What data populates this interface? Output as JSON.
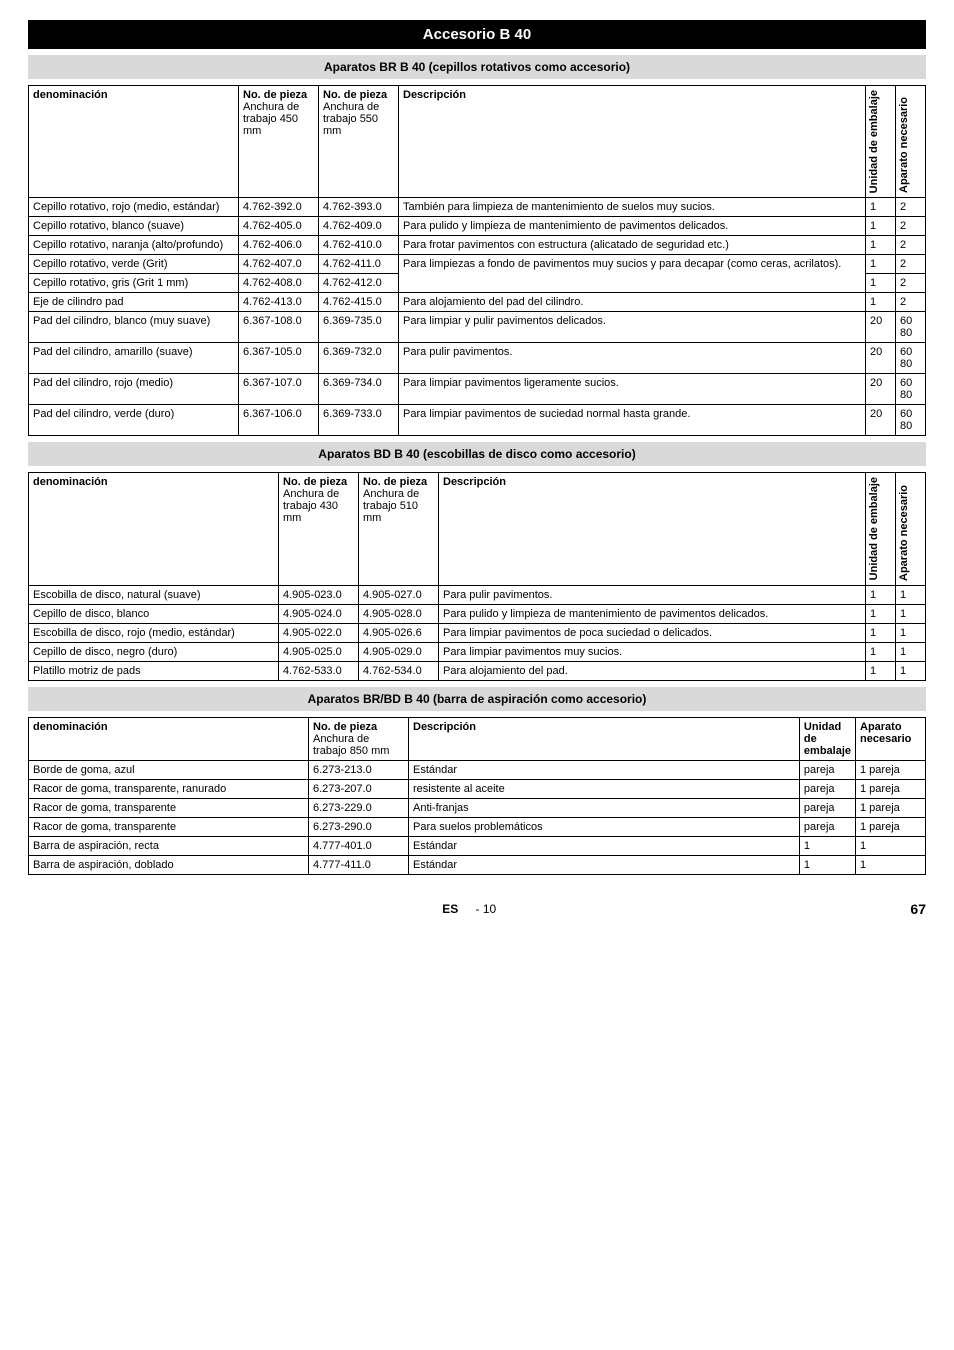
{
  "title": "Accesorio B 40",
  "sections": {
    "s1": {
      "header": "Aparatos BR B 40 (cepillos rotativos como accesorio)",
      "cols": {
        "denom": "denominación",
        "p450_top": "No. de pieza",
        "p450_sub": "Anchura de trabajo 450 mm",
        "p550_top": "No. de pieza",
        "p550_sub": "Anchura de trabajo 550 mm",
        "desc": "Descripción",
        "unidad": "Unidad de embalaje",
        "aparato": "Aparato necesario"
      },
      "rows": [
        {
          "d": "Cepillo rotativo, rojo (medio, estándar)",
          "p1": "4.762-392.0",
          "p2": "4.762-393.0",
          "desc": "También para limpieza de mantenimiento de suelos muy sucios.",
          "u": "1",
          "a": "2"
        },
        {
          "d": "Cepillo rotativo, blanco (suave)",
          "p1": "4.762-405.0",
          "p2": "4.762-409.0",
          "desc": "Para pulido y limpieza de mantenimiento de pavimentos delicados.",
          "u": "1",
          "a": "2"
        },
        {
          "d": "Cepillo rotativo, naranja (alto/profundo)",
          "p1": "4.762-406.0",
          "p2": "4.762-410.0",
          "desc": "Para frotar pavimentos con estructura (alicatado de seguridad etc.)",
          "u": "1",
          "a": "2"
        },
        {
          "d": "Cepillo rotativo, verde (Grit)",
          "p1": "4.762-407.0",
          "p2": "4.762-411.0",
          "desc": "Para limpiezas a fondo de pavimentos muy sucios y para decapar (como ceras, acrilatos).",
          "u": "1",
          "a": "2",
          "rowspan_desc": 2
        },
        {
          "d": "Cepillo rotativo, gris  (Grit 1 mm)",
          "p1": "4.762-408.0",
          "p2": "4.762-412.0",
          "u": "1",
          "a": "2",
          "skip_desc": true
        },
        {
          "d": "Eje de cilindro pad",
          "p1": "4.762-413.0",
          "p2": "4.762-415.0",
          "desc": "Para alojamiento del pad del cilindro.",
          "u": "1",
          "a": "2"
        },
        {
          "d": "Pad del cilindro, blanco (muy suave)",
          "p1": "6.367-108.0",
          "p2": "6.369-735.0",
          "desc": "Para limpiar y pulir pavimentos delicados.",
          "u": "20",
          "a": "60\n80"
        },
        {
          "d": "Pad del cilindro, amarillo (suave)",
          "p1": "6.367-105.0",
          "p2": "6.369-732.0",
          "desc": "Para pulir pavimentos.",
          "u": "20",
          "a": "60\n80"
        },
        {
          "d": "Pad del cilindro, rojo (medio)",
          "p1": "6.367-107.0",
          "p2": "6.369-734.0",
          "desc": "Para limpiar pavimentos ligeramente sucios.",
          "u": "20",
          "a": "60\n80"
        },
        {
          "d": "Pad del cilindro, verde (duro)",
          "p1": "6.367-106.0",
          "p2": "6.369-733.0",
          "desc": "Para limpiar pavimentos de suciedad normal hasta grande.",
          "u": "20",
          "a": "60\n80"
        }
      ]
    },
    "s2": {
      "header": "Aparatos BD B 40 (escobillas de disco como accesorio)",
      "cols": {
        "denom": "denominación",
        "p430_top": "No. de pieza",
        "p430_sub": "Anchura de trabajo 430 mm",
        "p510_top": "No. de pieza",
        "p510_sub": "Anchura de trabajo 510 mm",
        "desc": "Descripción",
        "unidad": "Unidad de embalaje",
        "aparato": "Aparato necesario"
      },
      "rows": [
        {
          "d": "Escobilla de disco, natural (suave)",
          "p1": "4.905-023.0",
          "p2": "4.905-027.0",
          "desc": "Para pulir pavimentos.",
          "u": "1",
          "a": "1"
        },
        {
          "d": "Cepillo de disco, blanco",
          "p1": "4.905-024.0",
          "p2": "4.905-028.0",
          "desc": "Para pulido y limpieza de mantenimiento de pavimentos delicados.",
          "u": "1",
          "a": "1"
        },
        {
          "d": "Escobilla de disco, rojo (medio, estándar)",
          "p1": "4.905-022.0",
          "p2": "4.905-026.6",
          "desc": "Para limpiar pavimentos de poca suciedad o delicados.",
          "u": "1",
          "a": "1"
        },
        {
          "d": "Cepillo de disco, negro (duro)",
          "p1": "4.905-025.0",
          "p2": "4.905-029.0",
          "desc": "Para limpiar pavimentos muy sucios.",
          "u": "1",
          "a": "1"
        },
        {
          "d": "Platillo motriz de pads",
          "p1": "4.762-533.0",
          "p2": "4.762-534.0",
          "desc": "Para alojamiento del pad.",
          "u": "1",
          "a": "1"
        }
      ]
    },
    "s3": {
      "header": "Aparatos BR/BD B 40 (barra de aspiración como accesorio)",
      "cols": {
        "denom": "denominación",
        "p850_top": "No. de pieza",
        "p850_sub": "Anchura de trabajo 850 mm",
        "desc": "Descripción",
        "unidad": "Unidad de embalaje",
        "aparato": "Aparato necesario"
      },
      "rows": [
        {
          "d": "Borde de goma, azul",
          "p1": "6.273-213.0",
          "desc": "Estándar",
          "u": "pareja",
          "a": "1 pareja"
        },
        {
          "d": "Racor de goma, transparente, ranurado",
          "p1": "6.273-207.0",
          "desc": "resistente al aceite",
          "u": "pareja",
          "a": "1 pareja"
        },
        {
          "d": "Racor de goma, transparente",
          "p1": "6.273-229.0",
          "desc": "Anti-franjas",
          "u": "pareja",
          "a": "1 pareja"
        },
        {
          "d": "Racor de goma, transparente",
          "p1": "6.273-290.0",
          "desc": "Para suelos problemáticos",
          "u": "pareja",
          "a": "1 pareja"
        },
        {
          "d": "Barra de aspiración, recta",
          "p1": "4.777-401.0",
          "desc": "Estándar",
          "u": "1",
          "a": "1"
        },
        {
          "d": "Barra de aspiración, doblado",
          "p1": "4.777-411.0",
          "desc": "Estándar",
          "u": "1",
          "a": "1"
        }
      ]
    }
  },
  "footer": {
    "lang": "ES",
    "pageSection": "- 10",
    "pageNum": "67"
  }
}
